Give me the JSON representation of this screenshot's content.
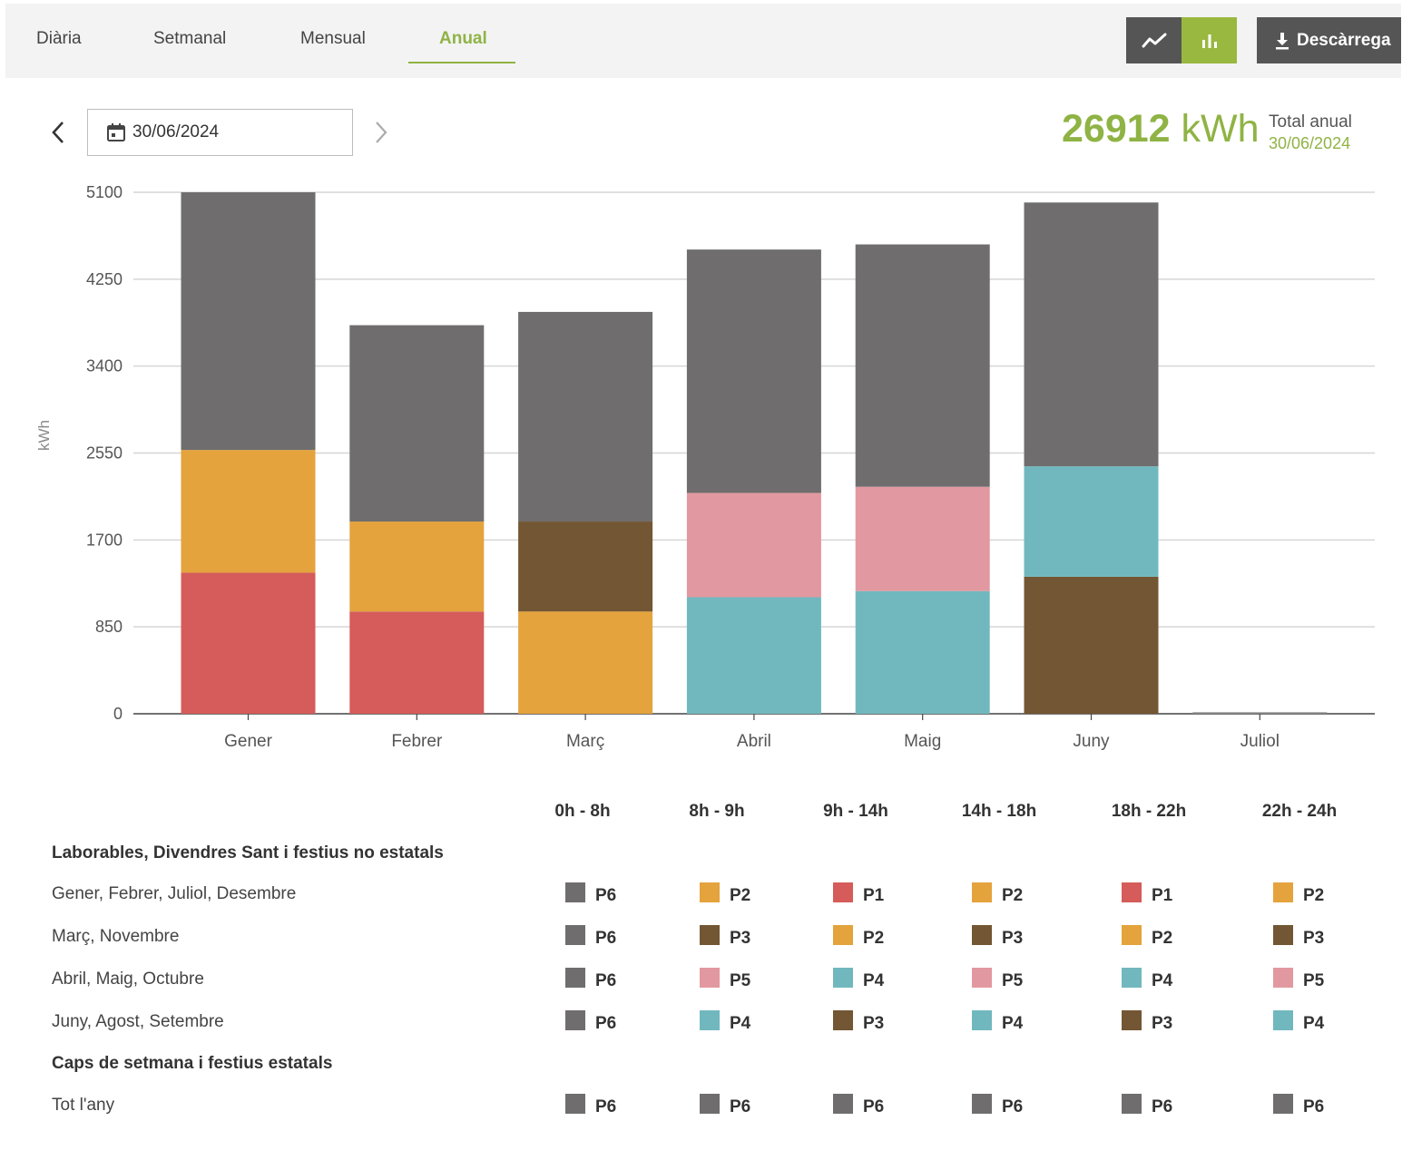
{
  "tabs": [
    {
      "label": "Diària",
      "active": false
    },
    {
      "label": "Setmanal",
      "active": false
    },
    {
      "label": "Mensual",
      "active": false
    },
    {
      "label": "Anual",
      "active": true
    }
  ],
  "toolbar": {
    "line_view_icon": "line-chart-icon",
    "bar_view_icon": "bar-chart-icon",
    "download_label": "Descàrrega",
    "download_icon": "download-icon"
  },
  "date_picker": {
    "value": "30/06/2024",
    "calendar_icon": "calendar-icon",
    "prev_icon": "chevron-left-icon",
    "next_icon": "chevron-right-icon"
  },
  "summary": {
    "total_value": "26912",
    "total_unit": "kWh",
    "total_label": "Total anual",
    "total_date": "30/06/2024"
  },
  "colors": {
    "P1": "#d55c5a",
    "P2": "#e4a33c",
    "P3": "#735633",
    "P4": "#71b8be",
    "P5": "#e298a0",
    "P6": "#6f6d6e",
    "accent": "#8fb344"
  },
  "chart_data": {
    "type": "bar",
    "stacked": true,
    "ylabel": "kWh",
    "xlabel": "",
    "ylim": [
      0,
      5100
    ],
    "yticks": [
      0,
      850,
      1700,
      2550,
      3400,
      4250,
      5100
    ],
    "grid": true,
    "categories": [
      "Gener",
      "Febrer",
      "Març",
      "Abril",
      "Maig",
      "Juny",
      "Juliol"
    ],
    "series": [
      {
        "name": "P1",
        "values": [
          1380,
          1000,
          0,
          0,
          0,
          0,
          0
        ]
      },
      {
        "name": "P2",
        "values": [
          1200,
          880,
          1000,
          0,
          0,
          0,
          0
        ]
      },
      {
        "name": "P3",
        "values": [
          0,
          0,
          880,
          0,
          0,
          1340,
          0
        ]
      },
      {
        "name": "P4",
        "values": [
          0,
          0,
          0,
          1140,
          1200,
          1080,
          0
        ]
      },
      {
        "name": "P5",
        "values": [
          0,
          0,
          0,
          1020,
          1020,
          0,
          0
        ]
      },
      {
        "name": "P6",
        "values": [
          2520,
          1920,
          2050,
          2380,
          2370,
          2580,
          0
        ]
      }
    ]
  },
  "legend_table": {
    "columns": [
      "0h - 8h",
      "8h - 9h",
      "9h - 14h",
      "14h - 18h",
      "18h - 22h",
      "22h - 24h"
    ],
    "sections": [
      {
        "title": "Laborables, Divendres Sant i festius no estatals",
        "rows": [
          {
            "label": "Gener, Febrer, Juliol, Desembre",
            "cells": [
              "P6",
              "P2",
              "P1",
              "P2",
              "P1",
              "P2"
            ]
          },
          {
            "label": "Març, Novembre",
            "cells": [
              "P6",
              "P3",
              "P2",
              "P3",
              "P2",
              "P3"
            ]
          },
          {
            "label": "Abril, Maig, Octubre",
            "cells": [
              "P6",
              "P5",
              "P4",
              "P5",
              "P4",
              "P5"
            ]
          },
          {
            "label": "Juny, Agost, Setembre",
            "cells": [
              "P6",
              "P4",
              "P3",
              "P4",
              "P3",
              "P4"
            ]
          }
        ]
      },
      {
        "title": "Caps de setmana i festius estatals",
        "rows": [
          {
            "label": "Tot l'any",
            "cells": [
              "P6",
              "P6",
              "P6",
              "P6",
              "P6",
              "P6"
            ]
          }
        ]
      }
    ]
  }
}
